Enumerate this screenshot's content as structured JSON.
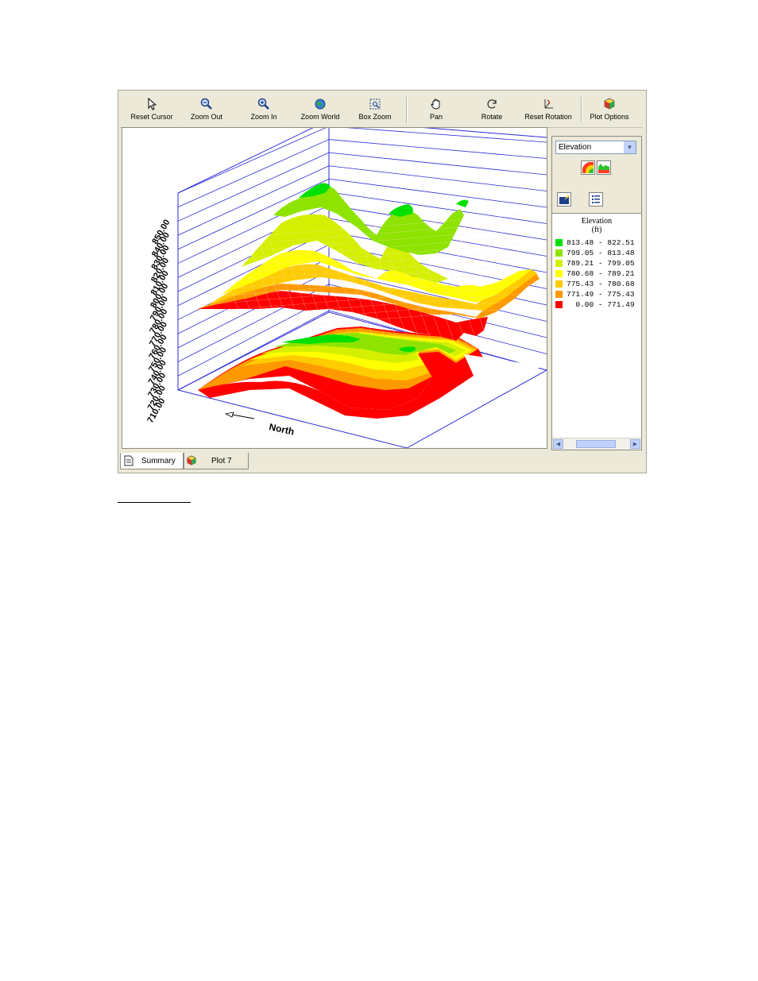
{
  "toolbar": {
    "buttons": [
      {
        "label": "Reset Cursor",
        "icon": "cursor-icon"
      },
      {
        "label": "Zoom Out",
        "icon": "zoom-out-icon"
      },
      {
        "label": "Zoom In",
        "icon": "zoom-in-icon"
      },
      {
        "label": "Zoom World",
        "icon": "globe-icon"
      },
      {
        "label": "Box Zoom",
        "icon": "box-zoom-icon"
      },
      {
        "label": "Pan",
        "icon": "hand-icon"
      },
      {
        "label": "Rotate",
        "icon": "rotate-icon"
      },
      {
        "label": "Reset Rotation",
        "icon": "reset-rotation-icon"
      },
      {
        "label": "Plot Options",
        "icon": "plot-options-icon"
      }
    ]
  },
  "plot": {
    "z_ticks": [
      "850.00",
      "840.00",
      "830.00",
      "820.00",
      "810.00",
      "800.00",
      "790.00",
      "780.00",
      "770.00",
      "760.00",
      "750.00",
      "740.00",
      "730.00",
      "720.00",
      "710.00"
    ],
    "direction_label": "North",
    "colors": {
      "grid": "#2a2ad6",
      "band1": "#00e000",
      "band2": "#8ee400",
      "band3": "#d4f000",
      "band4": "#ffff00",
      "band5": "#ffcc00",
      "band6": "#ff9900",
      "band7": "#ff0000",
      "mesh": "#ffe0c8"
    }
  },
  "side_panel": {
    "variable_select": "Elevation",
    "legend": {
      "title": "Elevation",
      "unit": "(ft)",
      "ranges": [
        {
          "label": "813.48 - 822.51",
          "color": "#00e000"
        },
        {
          "label": "799.05 - 813.48",
          "color": "#8ee400"
        },
        {
          "label": "789.21 - 799.05",
          "color": "#d4f000"
        },
        {
          "label": "780.68 - 789.21",
          "color": "#ffff00"
        },
        {
          "label": "775.43 - 780.68",
          "color": "#ffcc00"
        },
        {
          "label": "771.49 - 775.43",
          "color": "#ff9900"
        },
        {
          "label": "  0.00 - 771.49",
          "color": "#ff0000"
        }
      ]
    }
  },
  "tabs": [
    {
      "label": "Summary",
      "icon": "document-icon"
    },
    {
      "label": "Plot 7",
      "icon": "cube-icon"
    }
  ]
}
